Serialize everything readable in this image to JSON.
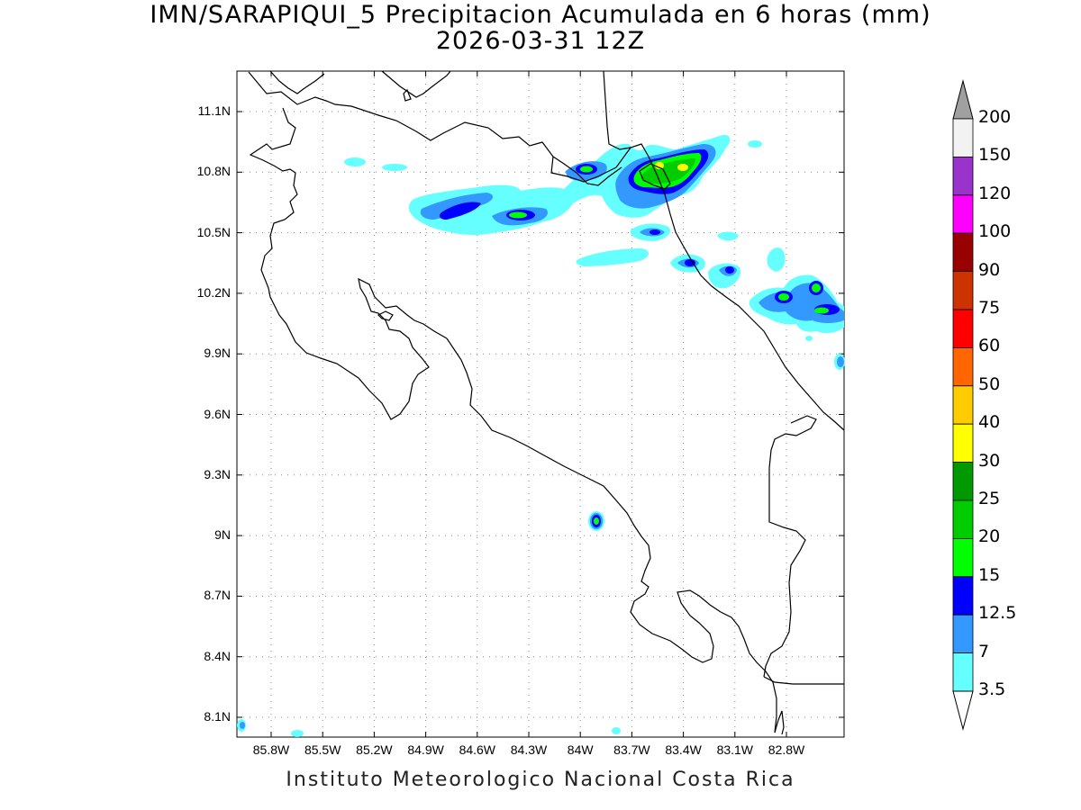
{
  "title": {
    "line1": "IMN/SARAPIQUI_5 Precipitacion Acumulada en 6 horas (mm)",
    "line2": "2026-03-31 12Z"
  },
  "footer": "Instituto Meteorologico Nacional Costa Rica",
  "axes": {
    "lat_ticks": [
      "11.1N",
      "10.8N",
      "10.5N",
      "10.2N",
      "9.9N",
      "9.6N",
      "9.3N",
      "9N",
      "8.7N",
      "8.4N",
      "8.1N"
    ],
    "lon_ticks": [
      "85.8W",
      "85.5W",
      "85.2W",
      "84.9W",
      "84.6W",
      "84.3W",
      "84W",
      "83.7W",
      "83.4W",
      "83.1W",
      "82.8W"
    ],
    "grid": "dotted"
  },
  "colorbar": {
    "labels": [
      "200",
      "150",
      "120",
      "100",
      "90",
      "75",
      "60",
      "50",
      "40",
      "30",
      "25",
      "20",
      "15",
      "12.5",
      "7",
      "3.5"
    ],
    "colors": [
      "#f2f2f2",
      "#9933cc",
      "#ff00ff",
      "#990000",
      "#cc3300",
      "#ff0000",
      "#ff6600",
      "#ffcc00",
      "#ffff00",
      "#009900",
      "#00cc00",
      "#00ff00",
      "#0000ff",
      "#3399ff",
      "#66ffff"
    ],
    "over_color": "#a0a0a0",
    "under_color": "#ffffff"
  }
}
